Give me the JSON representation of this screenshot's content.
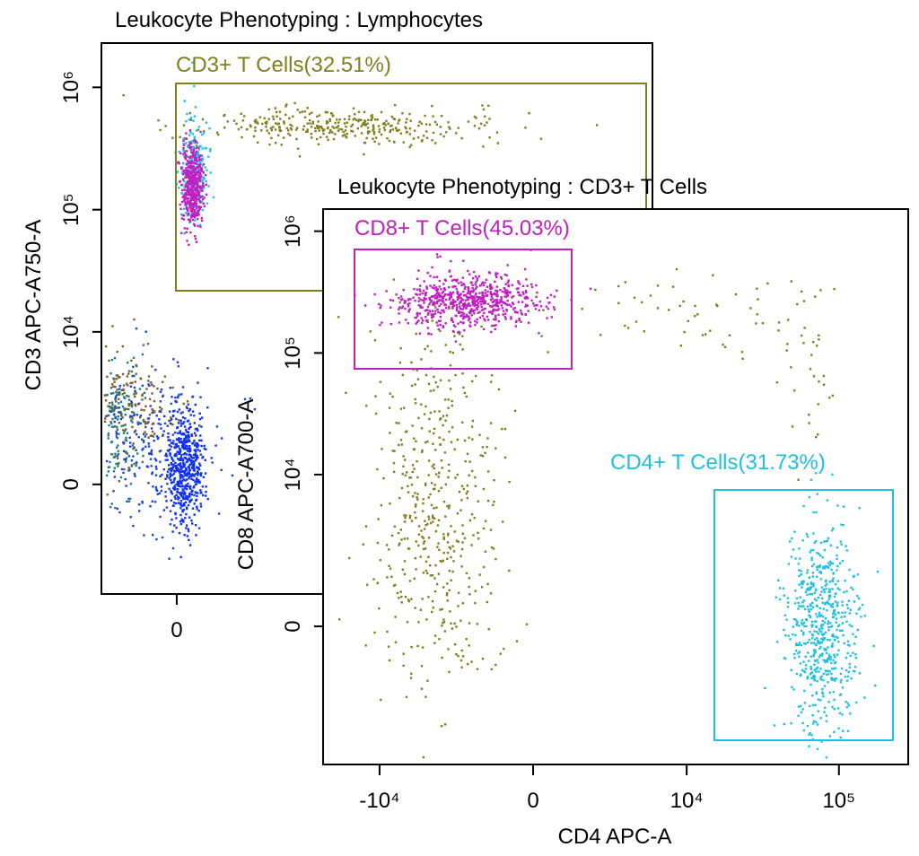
{
  "chart_data": [
    {
      "type": "scatter",
      "title": "Leukocyte Phenotyping : Lymphocytes",
      "y_label": "CD3 APC-A750-A",
      "xlim": [
        -2200,
        4300000
      ],
      "xticks": [
        0
      ],
      "ylim": [
        -4400,
        2300000
      ],
      "yticks": [
        {
          "value": 0,
          "label": "0"
        },
        {
          "value": 10000,
          "label": "10⁴"
        },
        {
          "value": 100000,
          "label": "10⁵"
        },
        {
          "value": 1000000,
          "label": "10⁶"
        }
      ],
      "gates": [
        {
          "label": "CD3+ T Cells(32.51%)",
          "color": "#7f7f1f"
        }
      ]
    },
    {
      "type": "scatter",
      "title": "Leukocyte Phenotyping : CD3+ T Cells",
      "x_label": "CD4 APC-A",
      "y_label": "CD8 APC-A700-A",
      "xlim": [
        -23600,
        284000
      ],
      "xticks": [
        {
          "value": -10000,
          "label": "-10⁴"
        },
        0,
        {
          "value": 10000,
          "label": "10⁴"
        },
        {
          "value": 100000,
          "label": "10⁵"
        }
      ],
      "ylim": [
        -7700,
        1520000
      ],
      "yticks": [
        0,
        {
          "value": 10000,
          "label": "10⁴"
        },
        {
          "value": 100000,
          "label": "10⁵"
        },
        {
          "value": 1000000,
          "label": "10⁶"
        }
      ],
      "gates": [
        {
          "label": "CD8+ T Cells(45.03%)",
          "color": "#c020c0"
        },
        {
          "label": "CD4+ T Cells(31.73%)",
          "color": "#20c0e0"
        }
      ]
    }
  ]
}
